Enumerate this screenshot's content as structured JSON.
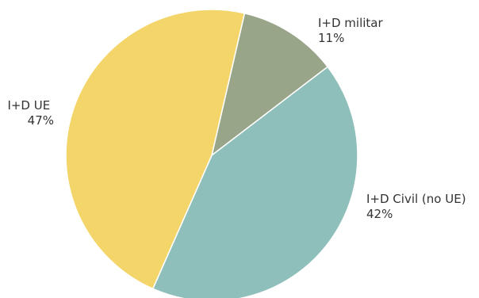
{
  "chart_data": {
    "type": "pie",
    "slices": [
      {
        "label": "I+D militar",
        "value": 11,
        "display": "11%",
        "color": "#98a588"
      },
      {
        "label": "I+D Civil (no UE)",
        "value": 42,
        "display": "42%",
        "color": "#8fbfba"
      },
      {
        "label": "I+D UE",
        "value": 47,
        "display": "47%",
        "color": "#f3d56a"
      }
    ],
    "start_angle_deg": 13,
    "direction": "clockwise",
    "legend": "none",
    "labels": "outside"
  }
}
